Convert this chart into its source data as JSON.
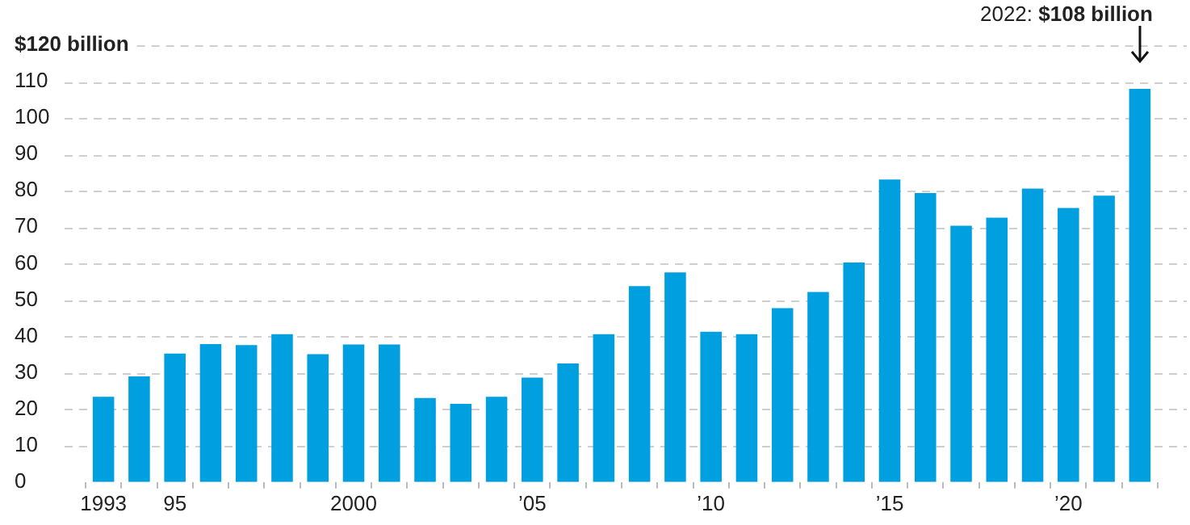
{
  "chart_data": {
    "type": "bar",
    "categories": [
      "1993",
      null,
      "95",
      null,
      null,
      null,
      null,
      "2000",
      null,
      null,
      null,
      null,
      "’05",
      null,
      null,
      null,
      null,
      "’10",
      null,
      null,
      null,
      null,
      "’15",
      null,
      null,
      null,
      null,
      "’20",
      null,
      null
    ],
    "values": [
      23.4,
      29.0,
      35.3,
      37.9,
      37.6,
      40.6,
      35.1,
      37.8,
      37.8,
      23.1,
      21.5,
      23.4,
      28.7,
      32.6,
      40.6,
      53.8,
      57.6,
      41.3,
      40.6,
      47.8,
      52.2,
      60.3,
      83.1,
      79.4,
      70.4,
      72.6,
      80.6,
      75.3,
      78.7,
      108
    ],
    "color": "#009fdf",
    "ylim": [
      0,
      120
    ],
    "yticks": [
      0,
      10,
      20,
      30,
      40,
      50,
      60,
      70,
      80,
      90,
      100,
      110,
      {
        "value": 120,
        "label": "$120 billion"
      }
    ],
    "grid": "y",
    "annotations": [
      "2022: $108 billion"
    ]
  }
}
